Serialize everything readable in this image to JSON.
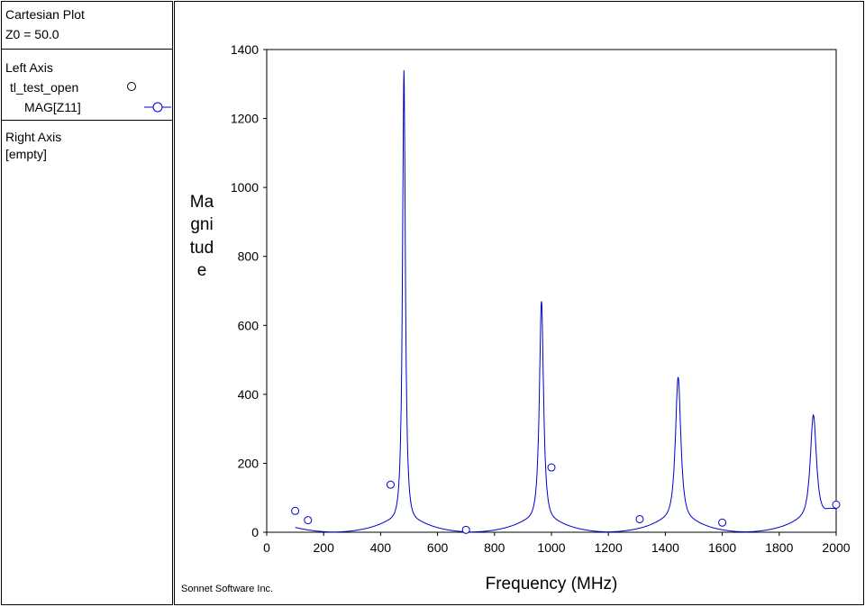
{
  "legend": {
    "plot_type": "Cartesian Plot",
    "z0": "Z0 = 50.0",
    "left_axis": {
      "title": "Left Axis",
      "project": "tl_test_open",
      "series": "MAG[Z11]"
    },
    "right_axis": {
      "title": "Right Axis",
      "value": "[empty]"
    }
  },
  "credit": "Sonnet Software Inc.",
  "colors": {
    "series": "#0000cc",
    "axis": "#000000"
  },
  "chart_data": {
    "type": "line",
    "xlabel": "Frequency (MHz)",
    "ylabel": "Magnitude",
    "xlim": [
      0,
      2000
    ],
    "ylim": [
      0,
      1400
    ],
    "xticks": [
      0,
      200,
      400,
      600,
      800,
      1000,
      1200,
      1400,
      1600,
      1800,
      2000
    ],
    "yticks": [
      0,
      200,
      400,
      600,
      800,
      1000,
      1200,
      1400
    ],
    "grid": false,
    "series": [
      {
        "name": "MAG[Z11]",
        "resonances": [
          {
            "x": 482,
            "peak": 1340
          },
          {
            "x": 965,
            "peak": 670
          },
          {
            "x": 1445,
            "peak": 450
          },
          {
            "x": 1920,
            "peak": 340
          }
        ],
        "zeros": [
          240,
          720,
          1200,
          1680
        ],
        "markers": [
          {
            "x": 100,
            "y": 62
          },
          {
            "x": 145,
            "y": 35
          },
          {
            "x": 435,
            "y": 138
          },
          {
            "x": 700,
            "y": 7
          },
          {
            "x": 1000,
            "y": 188
          },
          {
            "x": 1310,
            "y": 38
          },
          {
            "x": 1600,
            "y": 28
          },
          {
            "x": 2000,
            "y": 80
          }
        ]
      }
    ]
  }
}
